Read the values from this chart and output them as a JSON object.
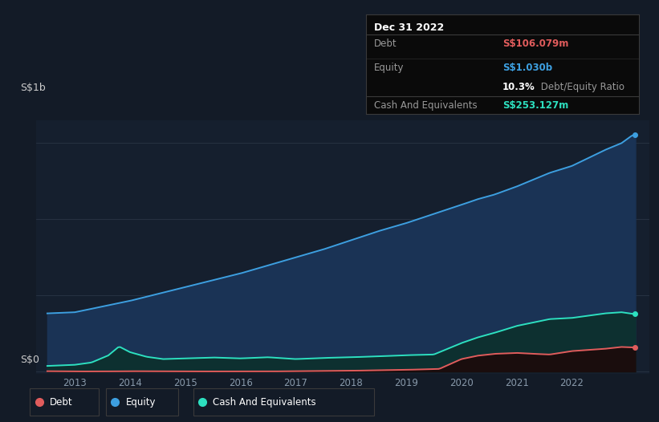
{
  "bg_color": "#131b27",
  "plot_bg_color": "#151f2e",
  "title_label": "S$1b",
  "zero_label": "S$0",
  "x_ticks": [
    2013,
    2014,
    2015,
    2016,
    2017,
    2018,
    2019,
    2020,
    2021,
    2022
  ],
  "equity_color": "#3d9fe0",
  "debt_color": "#e05c5c",
  "cash_color": "#2de0c0",
  "equity_fill": "#1a3355",
  "cash_fill": "#0d3030",
  "debt_fill": "#1a0d0d",
  "tooltip": {
    "date": "Dec 31 2022",
    "debt_label": "Debt",
    "debt_value": "S$106.079m",
    "debt_color": "#e05c5c",
    "equity_label": "Equity",
    "equity_value": "S$1.030b",
    "equity_color": "#3d9fe0",
    "ratio_value": "10.3%",
    "ratio_label": " Debt/Equity Ratio",
    "cash_label": "Cash And Equivalents",
    "cash_value": "S$253.127m",
    "cash_color": "#2de0c0",
    "bg": "#0a0a0a",
    "border_color": "#3a3a3a"
  },
  "legend": [
    {
      "label": "Debt",
      "color": "#e05c5c"
    },
    {
      "label": "Equity",
      "color": "#3d9fe0"
    },
    {
      "label": "Cash And Equivalents",
      "color": "#2de0c0"
    }
  ],
  "equity_points_t": [
    2012.5,
    2013.0,
    2013.5,
    2014.0,
    2014.5,
    2015.0,
    2015.5,
    2016.0,
    2016.5,
    2017.0,
    2017.5,
    2018.0,
    2018.5,
    2019.0,
    2019.5,
    2020.0,
    2020.3,
    2020.6,
    2021.0,
    2021.3,
    2021.6,
    2022.0,
    2022.3,
    2022.6,
    2022.9,
    2023.1
  ],
  "equity_points_v": [
    255,
    260,
    285,
    310,
    340,
    370,
    400,
    430,
    465,
    500,
    535,
    575,
    615,
    650,
    690,
    730,
    755,
    775,
    810,
    840,
    870,
    900,
    935,
    970,
    1000,
    1035
  ],
  "debt_points_t": [
    2012.5,
    2013.0,
    2013.5,
    2014.0,
    2015.0,
    2016.0,
    2016.5,
    2017.0,
    2017.5,
    2018.0,
    2018.5,
    2019.0,
    2019.3,
    2019.6,
    2020.0,
    2020.3,
    2020.6,
    2021.0,
    2021.3,
    2021.6,
    2022.0,
    2022.3,
    2022.6,
    2022.9,
    2023.1
  ],
  "debt_points_v": [
    2,
    1,
    1,
    2,
    1,
    1,
    1,
    2,
    3,
    4,
    6,
    8,
    10,
    12,
    55,
    70,
    78,
    82,
    78,
    75,
    90,
    95,
    100,
    108,
    106
  ],
  "cash_points_t": [
    2012.5,
    2013.0,
    2013.3,
    2013.6,
    2013.8,
    2014.0,
    2014.3,
    2014.6,
    2015.0,
    2015.5,
    2016.0,
    2016.5,
    2017.0,
    2017.5,
    2018.0,
    2018.5,
    2019.0,
    2019.5,
    2020.0,
    2020.3,
    2020.6,
    2021.0,
    2021.3,
    2021.6,
    2022.0,
    2022.3,
    2022.6,
    2022.9,
    2023.1
  ],
  "cash_points_v": [
    25,
    30,
    40,
    70,
    110,
    85,
    65,
    55,
    58,
    62,
    58,
    63,
    55,
    60,
    63,
    67,
    72,
    75,
    125,
    150,
    170,
    200,
    215,
    230,
    235,
    245,
    255,
    260,
    253
  ]
}
